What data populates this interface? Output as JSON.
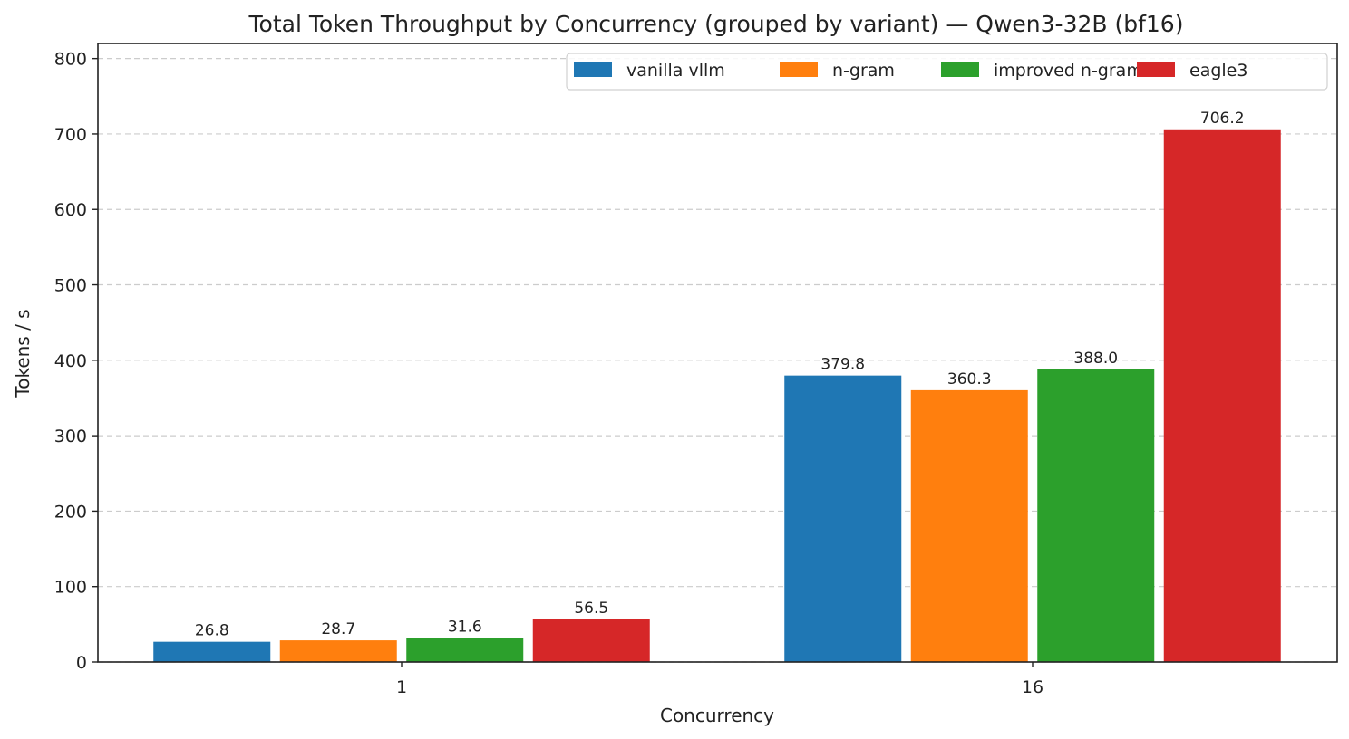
{
  "chart_data": {
    "type": "bar",
    "title": "Total Token Throughput by Concurrency (grouped by variant) — Qwen3-32B (bf16)",
    "xlabel": "Concurrency",
    "ylabel": "Tokens / s",
    "categories": [
      "1",
      "16"
    ],
    "ylim": [
      0,
      820
    ],
    "yticks": [
      0,
      100,
      200,
      300,
      400,
      500,
      600,
      700,
      800
    ],
    "grid": "y-dashed",
    "legend_position": "top-right",
    "series": [
      {
        "name": "vanilla vllm",
        "color": "#1f77b4",
        "values": [
          26.8,
          379.8
        ],
        "labels": [
          "26.8",
          "379.8"
        ]
      },
      {
        "name": "n-gram",
        "color": "#ff7f0e",
        "values": [
          28.7,
          360.3
        ],
        "labels": [
          "28.7",
          "360.3"
        ]
      },
      {
        "name": "improved n-gram",
        "color": "#2ca02c",
        "values": [
          31.6,
          388.0
        ],
        "labels": [
          "31.6",
          "388.0"
        ]
      },
      {
        "name": "eagle3",
        "color": "#d62728",
        "values": [
          56.5,
          706.2
        ],
        "labels": [
          "56.5",
          "706.2"
        ]
      }
    ]
  }
}
